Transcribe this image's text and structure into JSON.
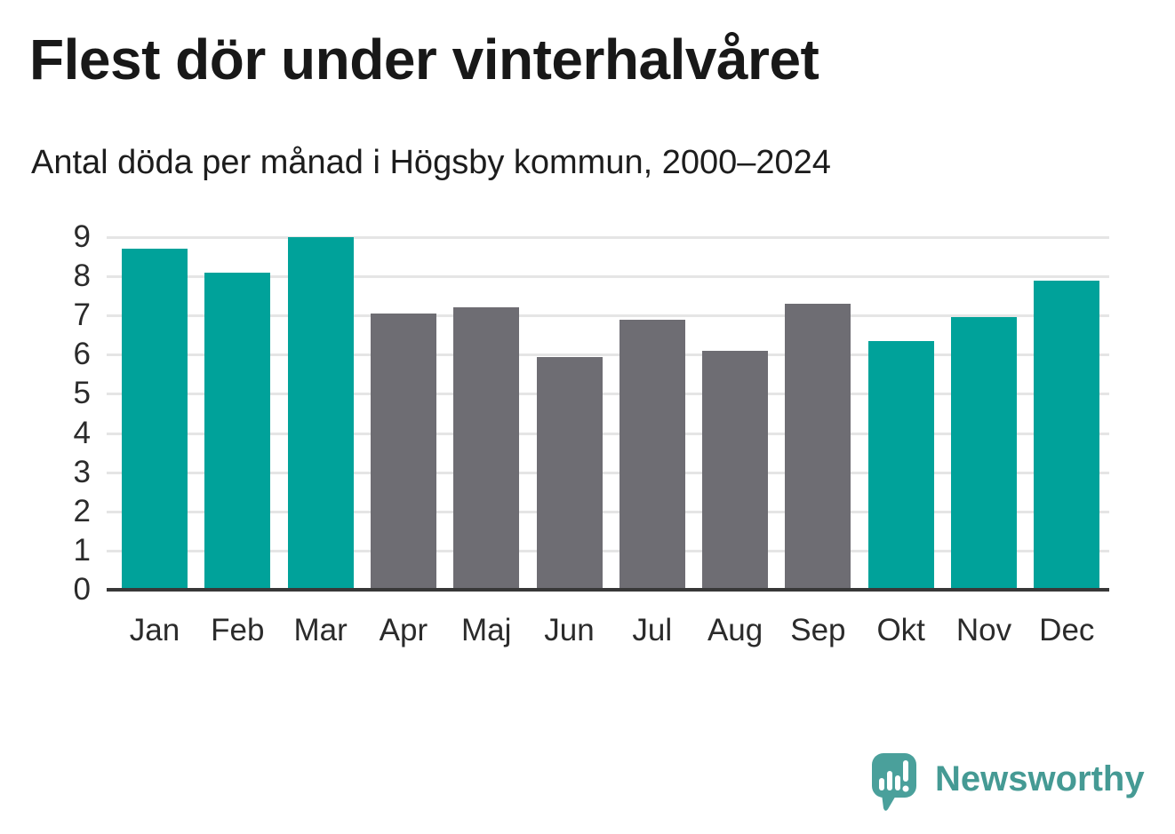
{
  "chart_data": {
    "type": "bar",
    "title": "Flest dör under vinterhalvåret",
    "subtitle": "Antal döda per månad i Högsby kommun, 2000–2024",
    "categories": [
      "Jan",
      "Feb",
      "Mar",
      "Apr",
      "Maj",
      "Jun",
      "Jul",
      "Aug",
      "Sep",
      "Okt",
      "Nov",
      "Dec"
    ],
    "values": [
      8.7,
      8.1,
      9.0,
      7.05,
      7.2,
      5.95,
      6.9,
      6.1,
      7.3,
      6.35,
      6.95,
      7.9
    ],
    "bar_colors": [
      "teal",
      "teal",
      "teal",
      "gray",
      "gray",
      "gray",
      "gray",
      "gray",
      "gray",
      "teal",
      "teal",
      "teal"
    ],
    "colors": {
      "teal": "#00a29a",
      "gray": "#6e6d73"
    },
    "xlabel": "",
    "ylabel": "",
    "ylim": [
      0,
      9
    ],
    "yticks": [
      0,
      1,
      2,
      3,
      4,
      5,
      6,
      7,
      8,
      9
    ],
    "grid": true,
    "legend_position": "none"
  },
  "footer": {
    "brand": "Newsworthy"
  }
}
